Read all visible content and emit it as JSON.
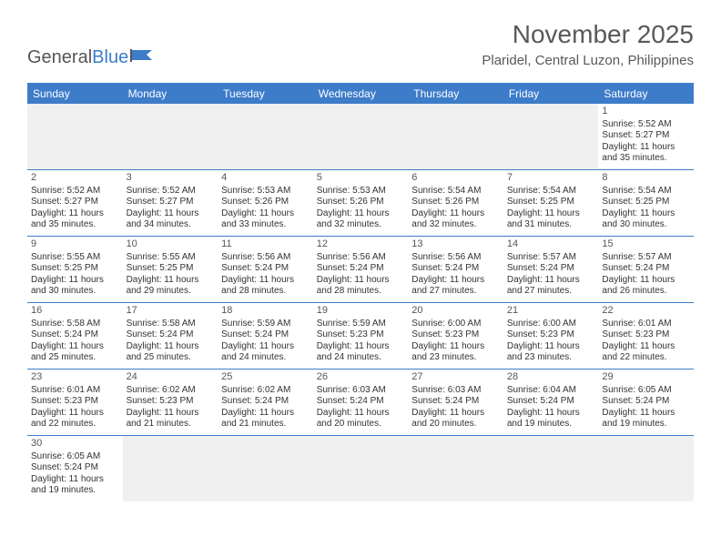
{
  "brand": {
    "name_a": "General",
    "name_b": "Blue"
  },
  "header": {
    "month_title": "November 2025",
    "location": "Plaridel, Central Luzon, Philippines"
  },
  "colors": {
    "accent": "#3d7cc9",
    "header_text": "#595959",
    "grid_line": "#3d7cc9",
    "empty_bg": "#f0f0f0",
    "body_text": "#333333",
    "logo_gray": "#555558"
  },
  "days_of_week": [
    "Sunday",
    "Monday",
    "Tuesday",
    "Wednesday",
    "Thursday",
    "Friday",
    "Saturday"
  ],
  "weeks": [
    [
      null,
      null,
      null,
      null,
      null,
      null,
      {
        "n": "1",
        "sunrise": "Sunrise: 5:52 AM",
        "sunset": "Sunset: 5:27 PM",
        "dl1": "Daylight: 11 hours",
        "dl2": "and 35 minutes."
      }
    ],
    [
      {
        "n": "2",
        "sunrise": "Sunrise: 5:52 AM",
        "sunset": "Sunset: 5:27 PM",
        "dl1": "Daylight: 11 hours",
        "dl2": "and 35 minutes."
      },
      {
        "n": "3",
        "sunrise": "Sunrise: 5:52 AM",
        "sunset": "Sunset: 5:27 PM",
        "dl1": "Daylight: 11 hours",
        "dl2": "and 34 minutes."
      },
      {
        "n": "4",
        "sunrise": "Sunrise: 5:53 AM",
        "sunset": "Sunset: 5:26 PM",
        "dl1": "Daylight: 11 hours",
        "dl2": "and 33 minutes."
      },
      {
        "n": "5",
        "sunrise": "Sunrise: 5:53 AM",
        "sunset": "Sunset: 5:26 PM",
        "dl1": "Daylight: 11 hours",
        "dl2": "and 32 minutes."
      },
      {
        "n": "6",
        "sunrise": "Sunrise: 5:54 AM",
        "sunset": "Sunset: 5:26 PM",
        "dl1": "Daylight: 11 hours",
        "dl2": "and 32 minutes."
      },
      {
        "n": "7",
        "sunrise": "Sunrise: 5:54 AM",
        "sunset": "Sunset: 5:25 PM",
        "dl1": "Daylight: 11 hours",
        "dl2": "and 31 minutes."
      },
      {
        "n": "8",
        "sunrise": "Sunrise: 5:54 AM",
        "sunset": "Sunset: 5:25 PM",
        "dl1": "Daylight: 11 hours",
        "dl2": "and 30 minutes."
      }
    ],
    [
      {
        "n": "9",
        "sunrise": "Sunrise: 5:55 AM",
        "sunset": "Sunset: 5:25 PM",
        "dl1": "Daylight: 11 hours",
        "dl2": "and 30 minutes."
      },
      {
        "n": "10",
        "sunrise": "Sunrise: 5:55 AM",
        "sunset": "Sunset: 5:25 PM",
        "dl1": "Daylight: 11 hours",
        "dl2": "and 29 minutes."
      },
      {
        "n": "11",
        "sunrise": "Sunrise: 5:56 AM",
        "sunset": "Sunset: 5:24 PM",
        "dl1": "Daylight: 11 hours",
        "dl2": "and 28 minutes."
      },
      {
        "n": "12",
        "sunrise": "Sunrise: 5:56 AM",
        "sunset": "Sunset: 5:24 PM",
        "dl1": "Daylight: 11 hours",
        "dl2": "and 28 minutes."
      },
      {
        "n": "13",
        "sunrise": "Sunrise: 5:56 AM",
        "sunset": "Sunset: 5:24 PM",
        "dl1": "Daylight: 11 hours",
        "dl2": "and 27 minutes."
      },
      {
        "n": "14",
        "sunrise": "Sunrise: 5:57 AM",
        "sunset": "Sunset: 5:24 PM",
        "dl1": "Daylight: 11 hours",
        "dl2": "and 27 minutes."
      },
      {
        "n": "15",
        "sunrise": "Sunrise: 5:57 AM",
        "sunset": "Sunset: 5:24 PM",
        "dl1": "Daylight: 11 hours",
        "dl2": "and 26 minutes."
      }
    ],
    [
      {
        "n": "16",
        "sunrise": "Sunrise: 5:58 AM",
        "sunset": "Sunset: 5:24 PM",
        "dl1": "Daylight: 11 hours",
        "dl2": "and 25 minutes."
      },
      {
        "n": "17",
        "sunrise": "Sunrise: 5:58 AM",
        "sunset": "Sunset: 5:24 PM",
        "dl1": "Daylight: 11 hours",
        "dl2": "and 25 minutes."
      },
      {
        "n": "18",
        "sunrise": "Sunrise: 5:59 AM",
        "sunset": "Sunset: 5:24 PM",
        "dl1": "Daylight: 11 hours",
        "dl2": "and 24 minutes."
      },
      {
        "n": "19",
        "sunrise": "Sunrise: 5:59 AM",
        "sunset": "Sunset: 5:23 PM",
        "dl1": "Daylight: 11 hours",
        "dl2": "and 24 minutes."
      },
      {
        "n": "20",
        "sunrise": "Sunrise: 6:00 AM",
        "sunset": "Sunset: 5:23 PM",
        "dl1": "Daylight: 11 hours",
        "dl2": "and 23 minutes."
      },
      {
        "n": "21",
        "sunrise": "Sunrise: 6:00 AM",
        "sunset": "Sunset: 5:23 PM",
        "dl1": "Daylight: 11 hours",
        "dl2": "and 23 minutes."
      },
      {
        "n": "22",
        "sunrise": "Sunrise: 6:01 AM",
        "sunset": "Sunset: 5:23 PM",
        "dl1": "Daylight: 11 hours",
        "dl2": "and 22 minutes."
      }
    ],
    [
      {
        "n": "23",
        "sunrise": "Sunrise: 6:01 AM",
        "sunset": "Sunset: 5:23 PM",
        "dl1": "Daylight: 11 hours",
        "dl2": "and 22 minutes."
      },
      {
        "n": "24",
        "sunrise": "Sunrise: 6:02 AM",
        "sunset": "Sunset: 5:23 PM",
        "dl1": "Daylight: 11 hours",
        "dl2": "and 21 minutes."
      },
      {
        "n": "25",
        "sunrise": "Sunrise: 6:02 AM",
        "sunset": "Sunset: 5:24 PM",
        "dl1": "Daylight: 11 hours",
        "dl2": "and 21 minutes."
      },
      {
        "n": "26",
        "sunrise": "Sunrise: 6:03 AM",
        "sunset": "Sunset: 5:24 PM",
        "dl1": "Daylight: 11 hours",
        "dl2": "and 20 minutes."
      },
      {
        "n": "27",
        "sunrise": "Sunrise: 6:03 AM",
        "sunset": "Sunset: 5:24 PM",
        "dl1": "Daylight: 11 hours",
        "dl2": "and 20 minutes."
      },
      {
        "n": "28",
        "sunrise": "Sunrise: 6:04 AM",
        "sunset": "Sunset: 5:24 PM",
        "dl1": "Daylight: 11 hours",
        "dl2": "and 19 minutes."
      },
      {
        "n": "29",
        "sunrise": "Sunrise: 6:05 AM",
        "sunset": "Sunset: 5:24 PM",
        "dl1": "Daylight: 11 hours",
        "dl2": "and 19 minutes."
      }
    ],
    [
      {
        "n": "30",
        "sunrise": "Sunrise: 6:05 AM",
        "sunset": "Sunset: 5:24 PM",
        "dl1": "Daylight: 11 hours",
        "dl2": "and 19 minutes."
      },
      null,
      null,
      null,
      null,
      null,
      null
    ]
  ]
}
